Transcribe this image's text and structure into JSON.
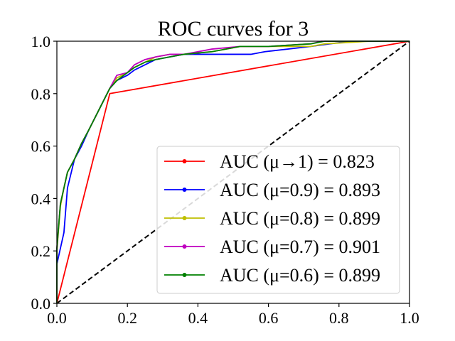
{
  "chart_data": {
    "type": "line",
    "title": "ROC curves for 3",
    "xlabel": "",
    "ylabel": "",
    "xlim": [
      0.0,
      1.0
    ],
    "ylim": [
      0.0,
      1.0
    ],
    "grid": false,
    "legend_position": "lower-right",
    "x_ticks": [
      {
        "value": 0.0,
        "label": "0.0"
      },
      {
        "value": 0.2,
        "label": "0.2"
      },
      {
        "value": 0.4,
        "label": "0.4"
      },
      {
        "value": 0.6,
        "label": "0.6"
      },
      {
        "value": 0.8,
        "label": "0.8"
      },
      {
        "value": 1.0,
        "label": "1.0"
      }
    ],
    "y_ticks": [
      {
        "value": 0.0,
        "label": "0.0"
      },
      {
        "value": 0.2,
        "label": "0.2"
      },
      {
        "value": 0.4,
        "label": "0.4"
      },
      {
        "value": 0.6,
        "label": "0.6"
      },
      {
        "value": 0.8,
        "label": "0.8"
      },
      {
        "value": 1.0,
        "label": "1.0"
      }
    ],
    "reference_line": {
      "name": "chance",
      "color": "#000000",
      "x": [
        0,
        1
      ],
      "y": [
        0,
        1
      ]
    },
    "series": [
      {
        "name": "AUC (μ→1) = 0.823",
        "color": "#ff0000",
        "x": [
          0,
          0.15,
          1.0
        ],
        "y": [
          0,
          0.8,
          1.0
        ]
      },
      {
        "name": "AUC (μ=0.9) = 0.893",
        "color": "#0000ff",
        "x": [
          0,
          0.0,
          0.02,
          0.03,
          0.05,
          0.07,
          0.09,
          0.12,
          0.15,
          0.17,
          0.2,
          0.22,
          0.25,
          0.28,
          0.32,
          0.36,
          0.44,
          0.55,
          0.59,
          0.72,
          0.83,
          1.0
        ],
        "y": [
          0,
          0.15,
          0.27,
          0.44,
          0.55,
          0.6,
          0.66,
          0.74,
          0.82,
          0.85,
          0.87,
          0.89,
          0.91,
          0.93,
          0.94,
          0.95,
          0.95,
          0.95,
          0.96,
          0.98,
          1.0,
          1.0
        ]
      },
      {
        "name": "AUC (μ=0.8) = 0.899",
        "color": "#bfbf00",
        "x": [
          0,
          0.0,
          0.01,
          0.02,
          0.03,
          0.05,
          0.07,
          0.09,
          0.12,
          0.15,
          0.17,
          0.2,
          0.22,
          0.25,
          0.28,
          0.32,
          0.36,
          0.44,
          0.52,
          0.6,
          0.72,
          0.76,
          0.89,
          1.0
        ],
        "y": [
          0,
          0.2,
          0.37,
          0.44,
          0.5,
          0.55,
          0.61,
          0.66,
          0.74,
          0.82,
          0.86,
          0.88,
          0.9,
          0.92,
          0.94,
          0.95,
          0.95,
          0.96,
          0.98,
          0.98,
          0.98,
          0.99,
          1.0,
          1.0
        ]
      },
      {
        "name": "AUC (μ=0.7) = 0.901",
        "color": "#bf00bf",
        "x": [
          0,
          0.0,
          0.01,
          0.02,
          0.03,
          0.05,
          0.07,
          0.09,
          0.12,
          0.15,
          0.17,
          0.2,
          0.22,
          0.25,
          0.28,
          0.32,
          0.36,
          0.44,
          0.52,
          0.6,
          0.72,
          0.75,
          1.0
        ],
        "y": [
          0,
          0.21,
          0.38,
          0.44,
          0.5,
          0.55,
          0.61,
          0.66,
          0.74,
          0.82,
          0.87,
          0.88,
          0.91,
          0.93,
          0.94,
          0.95,
          0.95,
          0.97,
          0.98,
          0.98,
          0.99,
          1.0,
          1.0
        ]
      },
      {
        "name": "AUC (μ=0.6) = 0.899",
        "color": "#008000",
        "x": [
          0,
          0.0,
          0.01,
          0.02,
          0.03,
          0.05,
          0.07,
          0.09,
          0.12,
          0.15,
          0.17,
          0.2,
          0.22,
          0.25,
          0.28,
          0.32,
          0.36,
          0.44,
          0.52,
          0.6,
          0.72,
          0.76,
          1.0
        ],
        "y": [
          0,
          0.21,
          0.38,
          0.44,
          0.5,
          0.55,
          0.61,
          0.66,
          0.74,
          0.82,
          0.85,
          0.88,
          0.9,
          0.92,
          0.93,
          0.94,
          0.95,
          0.96,
          0.98,
          0.98,
          0.99,
          1.0,
          1.0
        ]
      }
    ]
  }
}
